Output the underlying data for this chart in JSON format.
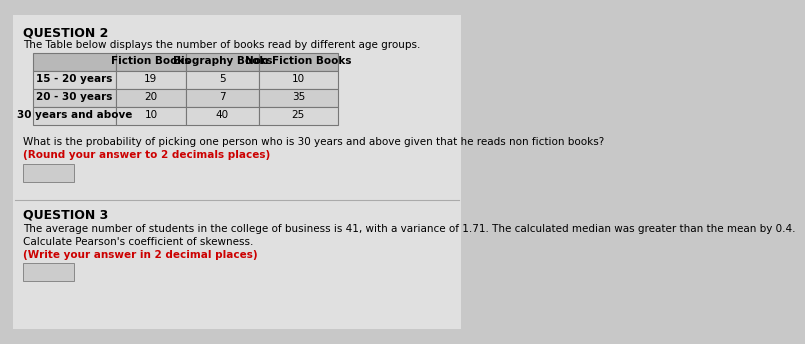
{
  "bg_color": "#c8c8c8",
  "paper_color": "#e0e0e0",
  "q2_title": "QUESTION 2",
  "q2_intro": "The Table below displays the number of books read by different age groups.",
  "table_headers": [
    "",
    "Fiction Books",
    "Biography Books",
    "Non Fiction Books"
  ],
  "table_rows": [
    [
      "15 - 20 years",
      "19",
      "5",
      "10"
    ],
    [
      "20 - 30 years",
      "20",
      "7",
      "35"
    ],
    [
      "30 years and above",
      "10",
      "40",
      "25"
    ]
  ],
  "q2_question": "What is the probability of picking one person who is 30 years and above given that he reads non fiction books?",
  "q2_instruction": "(Round your answer to 2 decimals places)",
  "q3_title": "QUESTION 3",
  "q3_text": "The average number of students in the college of business is 41, with a variance of 1.71. The calculated median was greater than the mean by 0.4.",
  "q3_question": "Calculate Pearson's coefficient of skewness.",
  "q3_instruction": "(Write your answer in 2 decimal places)",
  "title_fontsize": 9,
  "body_fontsize": 7.5,
  "red_color": "#cc0000",
  "header_bg": "#b8b8b8",
  "row_bg1": "#d8d8d8",
  "row_bg2": "#cecece",
  "table_border": "#777777"
}
